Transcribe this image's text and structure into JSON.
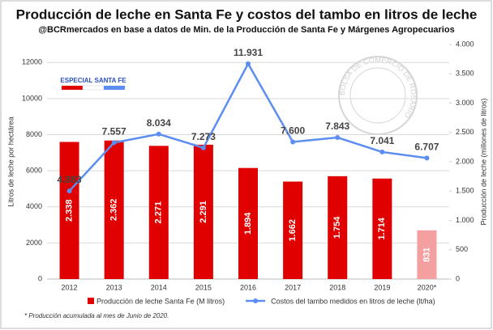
{
  "chart_data": {
    "type": "bar-line",
    "title": "Producción de leche en Santa Fe y costos del tambo en litros de leche",
    "subtitle": "@BCRmercados en base a datos de Min. de la Producción de Santa Fe y Márgenes Agropecuarios",
    "badge": "ESPECIAL SANTA FE",
    "watermark": "BOLSA DE COMERCIO DE ROSARIO",
    "footnote": "* Producción acumulada al mes de Junio de 2020.",
    "y_label": "Litros de leche por hectárea",
    "y2_label": "Producción de leche (millones de litros)",
    "categories": [
      "2012",
      "2013",
      "2014",
      "2015",
      "2016",
      "2017",
      "2018",
      "2019",
      "2020*"
    ],
    "ylim": [
      0,
      13000
    ],
    "yticks": [
      0,
      2000,
      4000,
      6000,
      8000,
      10000,
      12000
    ],
    "y2lim": [
      0,
      4000
    ],
    "y2ticks": [
      0,
      500,
      {
        "value": 1000,
        "label": "1.000"
      },
      {
        "value": 1500,
        "label": "1.500"
      },
      {
        "value": 2000,
        "label": "2.000"
      },
      {
        "value": 2500,
        "label": "2.500"
      },
      {
        "value": 3000,
        "label": "3.000"
      },
      {
        "value": 3500,
        "label": "3.500"
      },
      {
        "value": 4000,
        "label": "4.000"
      }
    ],
    "grid": true,
    "series": [
      {
        "name": "Producción de leche Santa Fe (M litros)",
        "kind": "bar",
        "axis": "y2",
        "color": "#e00000",
        "colors": [
          "#e00000",
          "#e00000",
          "#e00000",
          "#e00000",
          "#e00000",
          "#e00000",
          "#e00000",
          "#e00000",
          "#f4a0a0"
        ],
        "values": [
          2338,
          2362,
          2271,
          2291,
          1894,
          1662,
          1754,
          1714,
          831
        ],
        "value_labels": [
          "2.338",
          "2.362",
          "2.271",
          "2.291",
          "1.894",
          "1.662",
          "1.754",
          "1.714",
          "831"
        ]
      },
      {
        "name": "Costos del tambo medidos en litros de leche (lt/ha)",
        "kind": "line",
        "axis": "y",
        "color": "#5b8ef0",
        "values": [
          4883,
          7557,
          8034,
          7273,
          11931,
          7600,
          7843,
          7041,
          6707
        ],
        "value_labels": [
          "4.883",
          "7.557",
          "8.034",
          "7.273",
          "11.931",
          "7.600",
          "7.843",
          "7.041",
          "6.707"
        ]
      }
    ]
  }
}
